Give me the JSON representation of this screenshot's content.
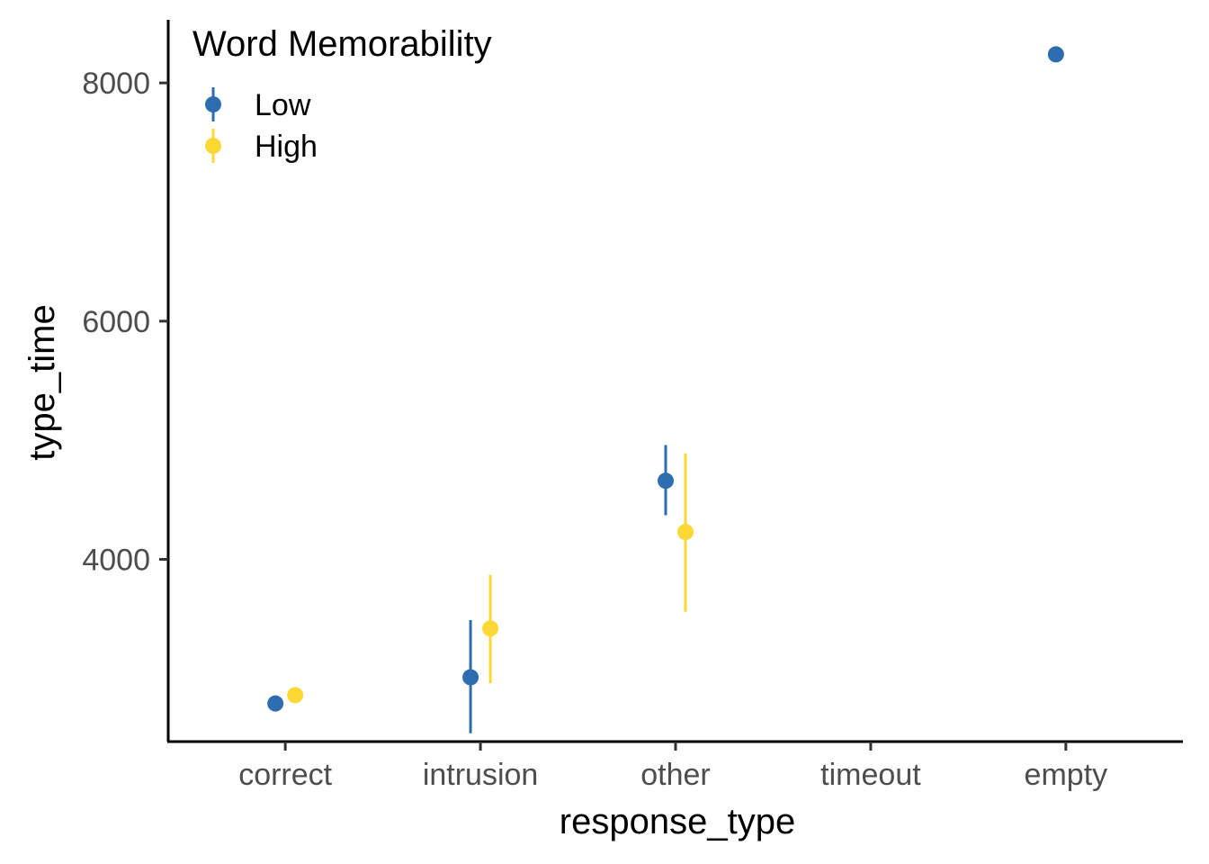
{
  "chart_data": {
    "type": "scatter",
    "subtype": "pointrange",
    "title": "",
    "xlabel": "response_type",
    "ylabel": "type_time",
    "categories": [
      "correct",
      "intrusion",
      "other",
      "timeout",
      "empty"
    ],
    "ylim": [
      2470,
      8530
    ],
    "yticks": [
      4000,
      6000,
      8000
    ],
    "grid": false,
    "legend": {
      "title": "Word Memorability",
      "position": "top-left"
    },
    "series": [
      {
        "name": "Low",
        "color": "#2E6DAF",
        "points": [
          {
            "category": "correct",
            "y": 2790,
            "ymin": null,
            "ymax": null
          },
          {
            "category": "intrusion",
            "y": 3010,
            "ymin": 2540,
            "ymax": 3490
          },
          {
            "category": "other",
            "y": 4660,
            "ymin": 4370,
            "ymax": 4960
          },
          {
            "category": "empty",
            "y": 8240,
            "ymin": null,
            "ymax": null
          }
        ]
      },
      {
        "name": "High",
        "color": "#FDD835",
        "points": [
          {
            "category": "correct",
            "y": 2860,
            "ymin": null,
            "ymax": null
          },
          {
            "category": "intrusion",
            "y": 3420,
            "ymin": 2960,
            "ymax": 3870
          },
          {
            "category": "other",
            "y": 4230,
            "ymin": 3560,
            "ymax": 4890
          }
        ]
      }
    ]
  }
}
